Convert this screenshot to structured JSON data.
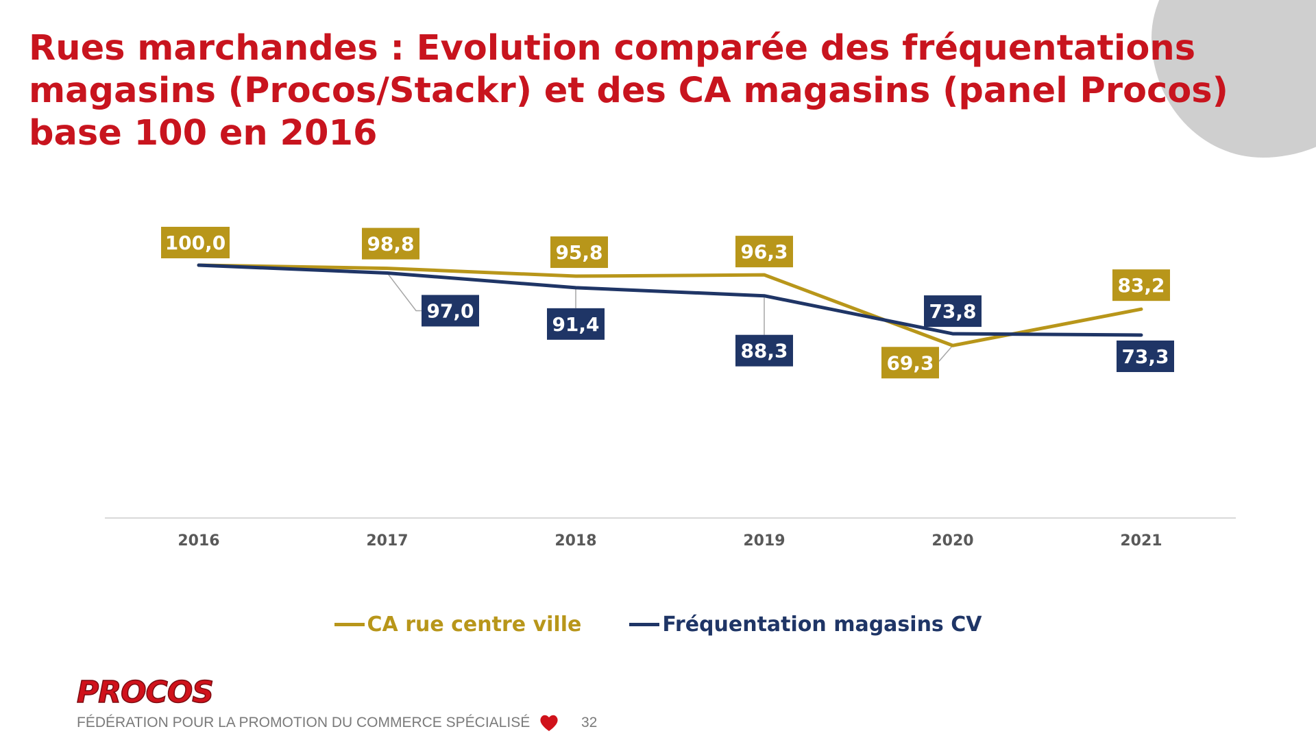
{
  "slide": {
    "title_lines": [
      "Rues marchandes : Evolution comparée des fréquentations",
      "magasins (Procos/Stackr) et des CA magasins (panel Procos)",
      "base 100 en 2016"
    ],
    "footer": {
      "logo": "PROCOS",
      "tagline": "FÉDÉRATION POUR LA PROMOTION DU COMMERCE SPÉCIALISÉ",
      "page_number": "32"
    }
  },
  "colors": {
    "title": "#c8141e",
    "ca_series": "#b8961a",
    "freq_series": "#1f3566",
    "axis": "#d9d9d9",
    "tick_label": "#595959",
    "label_text": "#ffffff",
    "leader_line": "#a6a6a6",
    "corner_shape": "#cfcfcf"
  },
  "chart_data": {
    "type": "line",
    "categories": [
      "2016",
      "2017",
      "2018",
      "2019",
      "2020",
      "2021"
    ],
    "series": [
      {
        "name": "CA rue centre ville",
        "color": "#b8961a",
        "values": [
          100.0,
          98.8,
          95.8,
          96.3,
          69.3,
          83.2
        ],
        "labels": [
          "100,0",
          "98,8",
          "95,8",
          "96,3",
          "69,3",
          "83,2"
        ]
      },
      {
        "name": "Fréquentation magasins CV",
        "color": "#1f3566",
        "values": [
          100.0,
          97.0,
          91.4,
          88.3,
          73.8,
          73.3
        ],
        "labels": [
          "",
          "97,0",
          "91,4",
          "88,3",
          "73,8",
          "73,3"
        ]
      }
    ],
    "legend_position": "bottom",
    "grid": false,
    "data_labels": true
  }
}
